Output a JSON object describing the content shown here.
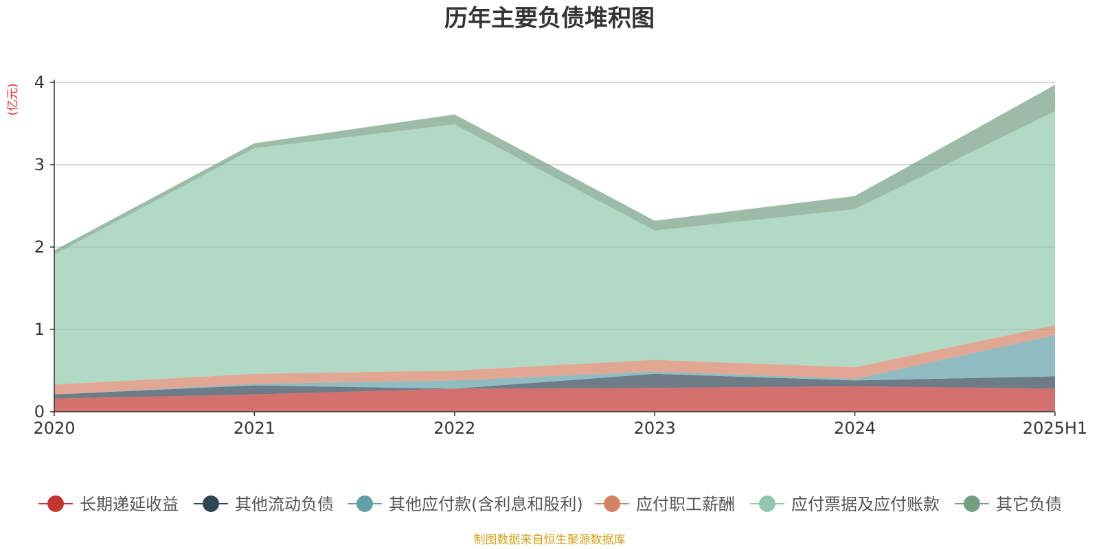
{
  "chart_data": {
    "type": "area",
    "stacked": true,
    "title": "历年主要负债堆积图",
    "ylabel": "(亿元)",
    "xlabel": "",
    "categories": [
      "2020",
      "2021",
      "2022",
      "2023",
      "2024",
      "2025H1"
    ],
    "ylim": [
      0,
      4
    ],
    "yticks": [
      0,
      1,
      2,
      3,
      4
    ],
    "grid": true,
    "legend_position": "bottom",
    "series": [
      {
        "name": "长期递延收益",
        "color": "#c23531",
        "values": [
          0.16,
          0.21,
          0.28,
          0.29,
          0.31,
          0.28
        ]
      },
      {
        "name": "其他流动负债",
        "color": "#2f4554",
        "values": [
          0.05,
          0.11,
          0.0,
          0.17,
          0.07,
          0.15
        ]
      },
      {
        "name": "其他应付款(含利息和股利)",
        "color": "#61a0a8",
        "values": [
          0.0,
          0.02,
          0.1,
          0.03,
          0.02,
          0.5
        ]
      },
      {
        "name": "应付职工薪酬",
        "color": "#d48265",
        "values": [
          0.12,
          0.12,
          0.12,
          0.14,
          0.14,
          0.12
        ]
      },
      {
        "name": "应付票据及应付账款",
        "color": "#91c7ae",
        "values": [
          1.58,
          2.74,
          2.99,
          1.57,
          1.92,
          2.6
        ]
      },
      {
        "name": "其它负债",
        "color": "#749f83",
        "values": [
          0.05,
          0.06,
          0.12,
          0.12,
          0.16,
          0.32
        ]
      }
    ]
  },
  "source_note": "制图数据来自恒生聚源数据库"
}
